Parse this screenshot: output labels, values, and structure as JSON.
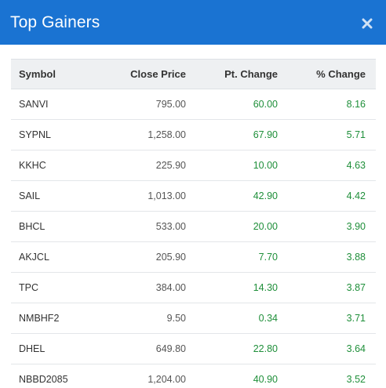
{
  "header": {
    "title": "Top Gainers"
  },
  "colors": {
    "header_bg": "#1a73d2",
    "positive": "#1f8f3a"
  },
  "table": {
    "columns": [
      "Symbol",
      "Close Price",
      "Pt. Change",
      "% Change"
    ],
    "rows": [
      {
        "symbol": "SANVI",
        "close": "795.00",
        "pt": "60.00",
        "pct": "8.16"
      },
      {
        "symbol": "SYPNL",
        "close": "1,258.00",
        "pt": "67.90",
        "pct": "5.71"
      },
      {
        "symbol": "KKHC",
        "close": "225.90",
        "pt": "10.00",
        "pct": "4.63"
      },
      {
        "symbol": "SAIL",
        "close": "1,013.00",
        "pt": "42.90",
        "pct": "4.42"
      },
      {
        "symbol": "BHCL",
        "close": "533.00",
        "pt": "20.00",
        "pct": "3.90"
      },
      {
        "symbol": "AKJCL",
        "close": "205.90",
        "pt": "7.70",
        "pct": "3.88"
      },
      {
        "symbol": "TPC",
        "close": "384.00",
        "pt": "14.30",
        "pct": "3.87"
      },
      {
        "symbol": "NMBHF2",
        "close": "9.50",
        "pt": "0.34",
        "pct": "3.71"
      },
      {
        "symbol": "DHEL",
        "close": "649.80",
        "pt": "22.80",
        "pct": "3.64"
      },
      {
        "symbol": "NBBD2085",
        "close": "1,204.00",
        "pt": "40.90",
        "pct": "3.52"
      }
    ]
  },
  "icons": {
    "close": "close-icon"
  }
}
